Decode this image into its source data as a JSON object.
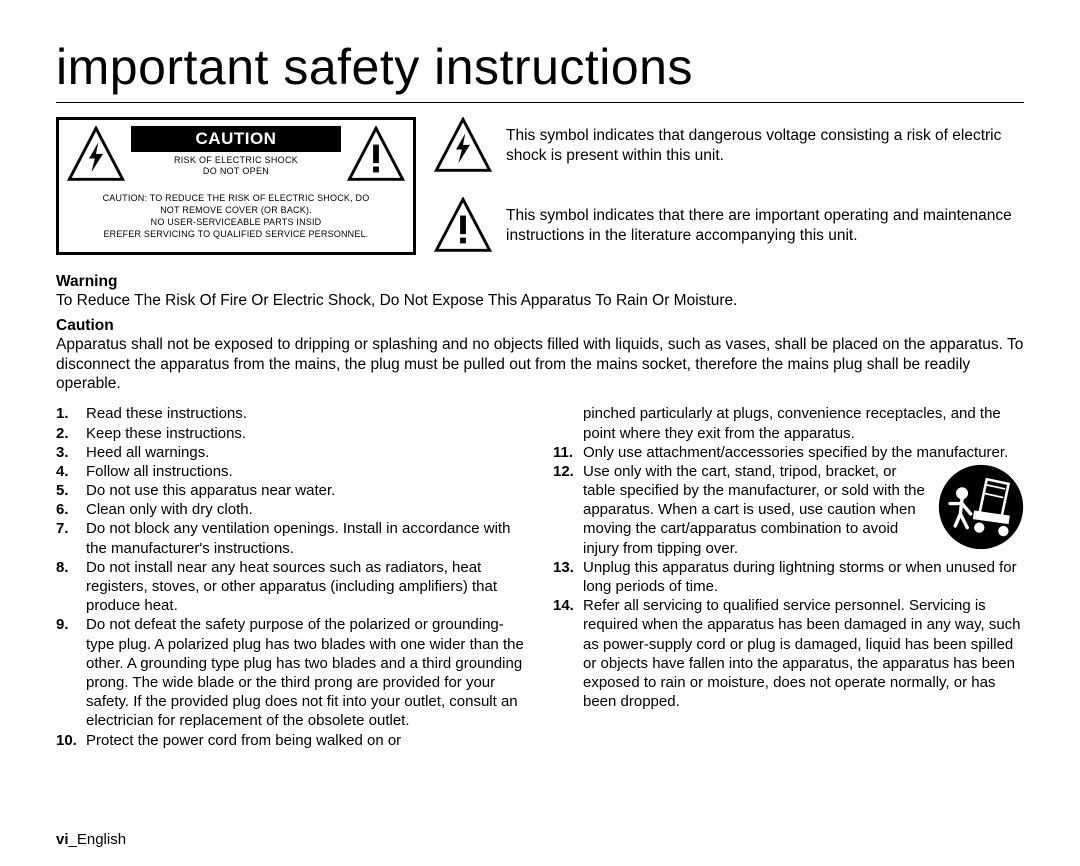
{
  "title": "important safety instructions",
  "caution_box": {
    "banner": "CAUTION",
    "sub_line1": "RISK OF ELECTRIC SHOCK",
    "sub_line2": "DO NOT OPEN",
    "body_line1": "CAUTION: TO REDUCE THE RISK OF ELECTRIC SHOCK,  DO",
    "body_line2": "NOT REMOVE COVER (OR BACK).",
    "body_line3": "NO USER-SERVICEABLE PARTS INSID",
    "body_line4": "EREFER SERVICING TO QUALIFIED SERVICE PERSONNEL."
  },
  "symbol1_text": "This symbol indicates that dangerous voltage consisting a risk of electric shock is present within this unit.",
  "symbol2_text": "This symbol indicates that there are important operating and maintenance instructions in the literature accompanying this unit.",
  "warning_heading": "Warning",
  "warning_body": "To Reduce The Risk Of Fire Or Electric Shock, Do Not Expose This Apparatus To Rain Or Moisture.",
  "caution_heading": "Caution",
  "caution_body": "Apparatus shall not be exposed to dripping or splashing and no objects filled with liquids, such as vases, shall be placed on the apparatus. To disconnect the apparatus from the mains, the plug must be pulled out from the mains socket, therefore the mains plug shall be readily operable.",
  "left_items": [
    {
      "n": "1.",
      "t": "Read these instructions."
    },
    {
      "n": "2.",
      "t": "Keep these instructions."
    },
    {
      "n": "3.",
      "t": "Heed all warnings."
    },
    {
      "n": "4.",
      "t": "Follow all instructions."
    },
    {
      "n": "5.",
      "t": "Do not use this apparatus near water."
    },
    {
      "n": "6.",
      "t": "Clean only with dry cloth."
    },
    {
      "n": "7.",
      "t": "Do not block any ventilation openings. Install in accordance with the manufacturer's instructions."
    },
    {
      "n": "8.",
      "t": "Do not install near any heat sources such as radiators, heat registers, stoves, or other apparatus (including amplifiers) that produce heat."
    },
    {
      "n": "9.",
      "t": "Do not defeat the safety purpose of the polarized or grounding-type plug. A polarized plug has two blades with one wider than the other. A grounding type plug has two blades and a third grounding prong. The wide blade or the third prong are provided for your safety. If the provided plug does not fit into your outlet, consult an electrician for replacement of the obsolete outlet."
    },
    {
      "n": "10.",
      "t": "Protect the power cord from being walked on or"
    }
  ],
  "right_cont": "pinched particularly at plugs, convenience receptacles, and the point where they exit from the apparatus.",
  "right_items": [
    {
      "n": "11.",
      "t": "Only use attachment/accessories specified by the manufacturer."
    },
    {
      "n": "12.",
      "t": "Use only with the cart, stand, tripod, bracket, or table specified by the manufacturer, or sold with the apparatus. When a cart is used, use caution when moving the cart/apparatus combination to avoid injury from tipping over."
    },
    {
      "n": "13.",
      "t": "Unplug this apparatus during lightning storms or when unused for long periods of time."
    },
    {
      "n": "14.",
      "t": "Refer all servicing to qualified service personnel. Servicing is required when the apparatus has been damaged in any way, such as power-supply cord or plug is damaged, liquid has been spilled or objects have fallen into the apparatus, the apparatus has been exposed to rain or moisture, does not operate normally, or has been dropped."
    }
  ],
  "footer_page": "vi",
  "footer_lang": "_English",
  "colors": {
    "text": "#000000",
    "bg": "#ffffff"
  }
}
